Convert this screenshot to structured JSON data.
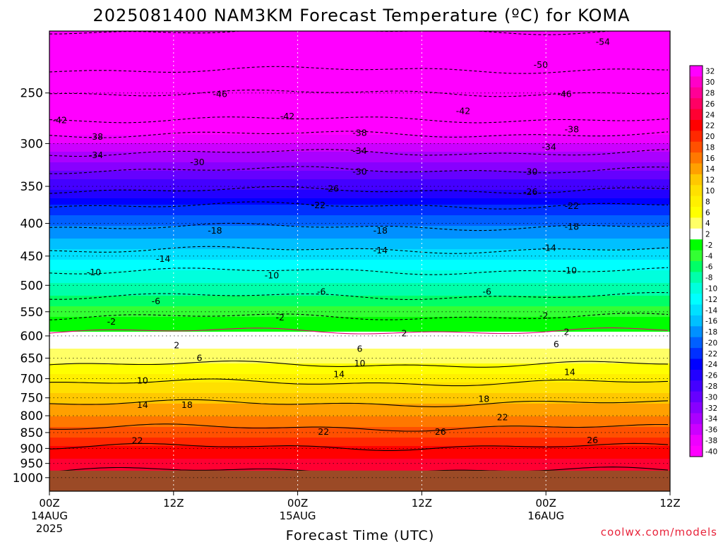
{
  "chart_data": {
    "type": "heatmap",
    "title": "2025081400 NAM3KM Forecast Temperature (ºC) for KOMA",
    "xlabel": "Forecast Time (UTC)",
    "ylabel": "",
    "credit": "coolwx.com/models",
    "y_scale": "log",
    "y_inverted": true,
    "ylim": [
      1050,
      200
    ],
    "y_ticks": [
      250,
      300,
      350,
      400,
      450,
      500,
      550,
      600,
      650,
      700,
      750,
      800,
      850,
      900,
      950,
      1000
    ],
    "xlim": [
      0,
      60
    ],
    "x_ticks": [
      {
        "hour": 0,
        "label": "00Z",
        "sub1": "14AUG",
        "sub2": "2025"
      },
      {
        "hour": 12,
        "label": "12Z",
        "sub1": "",
        "sub2": ""
      },
      {
        "hour": 24,
        "label": "00Z",
        "sub1": "15AUG",
        "sub2": ""
      },
      {
        "hour": 36,
        "label": "12Z",
        "sub1": "",
        "sub2": ""
      },
      {
        "hour": 48,
        "label": "00Z",
        "sub1": "16AUG",
        "sub2": ""
      },
      {
        "hour": 60,
        "label": "12Z",
        "sub1": "",
        "sub2": ""
      }
    ],
    "grid": true,
    "surface_pressure": 975,
    "surface_color": "#9b4a26",
    "temp_profile_hour0": [
      {
        "p": 200,
        "t": -58
      },
      {
        "p": 230,
        "t": -52
      },
      {
        "p": 250,
        "t": -47
      },
      {
        "p": 275,
        "t": -42
      },
      {
        "p": 290,
        "t": -38
      },
      {
        "p": 310,
        "t": -34
      },
      {
        "p": 330,
        "t": -30
      },
      {
        "p": 355,
        "t": -26
      },
      {
        "p": 375,
        "t": -22
      },
      {
        "p": 405,
        "t": -18
      },
      {
        "p": 440,
        "t": -14
      },
      {
        "p": 475,
        "t": -10
      },
      {
        "p": 520,
        "t": -6
      },
      {
        "p": 560,
        "t": -2
      },
      {
        "p": 590,
        "t": 2
      },
      {
        "p": 665,
        "t": 6
      },
      {
        "p": 710,
        "t": 10
      },
      {
        "p": 765,
        "t": 14
      },
      {
        "p": 835,
        "t": 18
      },
      {
        "p": 895,
        "t": 22
      },
      {
        "p": 975,
        "t": 26
      }
    ],
    "colorbar": [
      {
        "value": 32,
        "color": "#ff00ff"
      },
      {
        "value": 30,
        "color": "#ff00c8"
      },
      {
        "value": 28,
        "color": "#ff0096"
      },
      {
        "value": 26,
        "color": "#ff0064"
      },
      {
        "value": 24,
        "color": "#ff0032"
      },
      {
        "value": 22,
        "color": "#ff0000"
      },
      {
        "value": 20,
        "color": "#ff2800"
      },
      {
        "value": 18,
        "color": "#ff5000"
      },
      {
        "value": 16,
        "color": "#ff7800"
      },
      {
        "value": 14,
        "color": "#ffa000"
      },
      {
        "value": 12,
        "color": "#ffc800"
      },
      {
        "value": 10,
        "color": "#ffe000"
      },
      {
        "value": 8,
        "color": "#fff000"
      },
      {
        "value": 6,
        "color": "#ffff00"
      },
      {
        "value": 4,
        "color": "#ffff66"
      },
      {
        "value": 2,
        "color": "#ffffff"
      },
      {
        "value": -2,
        "color": "#00ff00"
      },
      {
        "value": -4,
        "color": "#33ff33"
      },
      {
        "value": -6,
        "color": "#00ff66"
      },
      {
        "value": -8,
        "color": "#00ffaa"
      },
      {
        "value": -10,
        "color": "#00ffdd"
      },
      {
        "value": -12,
        "color": "#00ffff"
      },
      {
        "value": -14,
        "color": "#00e0ff"
      },
      {
        "value": -16,
        "color": "#00c0ff"
      },
      {
        "value": -18,
        "color": "#0090ff"
      },
      {
        "value": -20,
        "color": "#0060ff"
      },
      {
        "value": -22,
        "color": "#0030ff"
      },
      {
        "value": -24,
        "color": "#0000ff"
      },
      {
        "value": -26,
        "color": "#2200ff"
      },
      {
        "value": -28,
        "color": "#4400ff"
      },
      {
        "value": -30,
        "color": "#6600ff"
      },
      {
        "value": -32,
        "color": "#8800ff"
      },
      {
        "value": -34,
        "color": "#aa00ff"
      },
      {
        "value": -36,
        "color": "#cc00ff"
      },
      {
        "value": -38,
        "color": "#ee00ff"
      },
      {
        "value": -40,
        "color": "#ff00ff"
      }
    ],
    "contour_labels": [
      {
        "hour": 53.5,
        "p": 208,
        "t": -54
      },
      {
        "hour": 47.5,
        "p": 226,
        "t": -50
      },
      {
        "hour": 16.5,
        "p": 251,
        "t": -46
      },
      {
        "hour": 49.8,
        "p": 251,
        "t": -46
      },
      {
        "hour": 1.0,
        "p": 276,
        "t": -42
      },
      {
        "hour": 23.0,
        "p": 272,
        "t": -42
      },
      {
        "hour": 40.0,
        "p": 267,
        "t": -42
      },
      {
        "hour": 4.5,
        "p": 293,
        "t": -38
      },
      {
        "hour": 30.0,
        "p": 289,
        "t": -38
      },
      {
        "hour": 50.5,
        "p": 285,
        "t": -38
      },
      {
        "hour": 4.5,
        "p": 313,
        "t": -34
      },
      {
        "hour": 30.0,
        "p": 308,
        "t": -34
      },
      {
        "hour": 48.3,
        "p": 304,
        "t": -34
      },
      {
        "hour": 14.3,
        "p": 321,
        "t": -30
      },
      {
        "hour": 30.0,
        "p": 332,
        "t": -30
      },
      {
        "hour": 46.5,
        "p": 332,
        "t": -30
      },
      {
        "hour": 27.3,
        "p": 353,
        "t": -26
      },
      {
        "hour": 46.5,
        "p": 357,
        "t": -26
      },
      {
        "hour": 26.0,
        "p": 375,
        "t": -22
      },
      {
        "hour": 50.5,
        "p": 376,
        "t": -22
      },
      {
        "hour": 16.0,
        "p": 411,
        "t": -18
      },
      {
        "hour": 32.0,
        "p": 411,
        "t": -18
      },
      {
        "hour": 50.5,
        "p": 405,
        "t": -18
      },
      {
        "hour": 11.0,
        "p": 455,
        "t": -14
      },
      {
        "hour": 32.0,
        "p": 441,
        "t": -14
      },
      {
        "hour": 48.3,
        "p": 437,
        "t": -14
      },
      {
        "hour": 4.3,
        "p": 477,
        "t": -10
      },
      {
        "hour": 21.5,
        "p": 483,
        "t": -10
      },
      {
        "hour": 50.3,
        "p": 474,
        "t": -10
      },
      {
        "hour": 10.3,
        "p": 530,
        "t": -6
      },
      {
        "hour": 26.3,
        "p": 512,
        "t": -6
      },
      {
        "hour": 42.3,
        "p": 512,
        "t": -6
      },
      {
        "hour": 6.0,
        "p": 570,
        "t": -2
      },
      {
        "hour": 22.3,
        "p": 562,
        "t": -2
      },
      {
        "hour": 47.8,
        "p": 558,
        "t": -2
      },
      {
        "hour": 12.3,
        "p": 621,
        "t": 2
      },
      {
        "hour": 34.3,
        "p": 595,
        "t": 2
      },
      {
        "hour": 50.0,
        "p": 592,
        "t": 2
      },
      {
        "hour": 14.5,
        "p": 650,
        "t": 6
      },
      {
        "hour": 30.0,
        "p": 629,
        "t": 6
      },
      {
        "hour": 49.0,
        "p": 619,
        "t": 6
      },
      {
        "hour": 9.0,
        "p": 705,
        "t": 10
      },
      {
        "hour": 30.0,
        "p": 663,
        "t": 10
      },
      {
        "hour": 28.0,
        "p": 689,
        "t": 14
      },
      {
        "hour": 50.3,
        "p": 684,
        "t": 14
      },
      {
        "hour": 9.0,
        "p": 770,
        "t": 14
      },
      {
        "hour": 13.3,
        "p": 770,
        "t": 18
      },
      {
        "hour": 42.0,
        "p": 753,
        "t": 18
      },
      {
        "hour": 43.8,
        "p": 805,
        "t": 22
      },
      {
        "hour": 8.5,
        "p": 875,
        "t": 22
      },
      {
        "hour": 26.5,
        "p": 848,
        "t": 22
      },
      {
        "hour": 37.8,
        "p": 848,
        "t": 26
      },
      {
        "hour": 52.5,
        "p": 874,
        "t": 26
      }
    ]
  }
}
